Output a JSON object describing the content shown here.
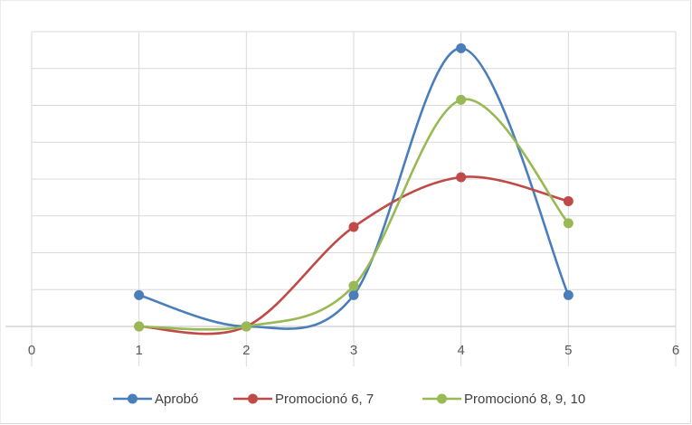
{
  "chart_data": {
    "type": "line",
    "title": "",
    "xlabel": "",
    "ylabel": "",
    "xlim": [
      0,
      6
    ],
    "ylim": [
      0,
      8
    ],
    "x_ticks": [
      "0",
      "1",
      "2",
      "3",
      "4",
      "5",
      "6"
    ],
    "y_tick_labels_shown": false,
    "grid": true,
    "smooth": true,
    "legend_position": "bottom",
    "series": [
      {
        "name": "Aprobó",
        "color": "#4a7ebb",
        "x": [
          1,
          2,
          3,
          4,
          5
        ],
        "y": [
          0.85,
          0,
          0.85,
          7.55,
          0.85
        ]
      },
      {
        "name": "Promocionó 6, 7",
        "color": "#be4b48",
        "x": [
          1,
          2,
          3,
          4,
          5
        ],
        "y": [
          0,
          0,
          2.7,
          4.05,
          3.4
        ]
      },
      {
        "name": "Promocionó 8, 9, 10",
        "color": "#98b954",
        "x": [
          1,
          2,
          3,
          4,
          5
        ],
        "y": [
          0,
          0,
          1.1,
          6.15,
          2.8
        ]
      }
    ]
  }
}
